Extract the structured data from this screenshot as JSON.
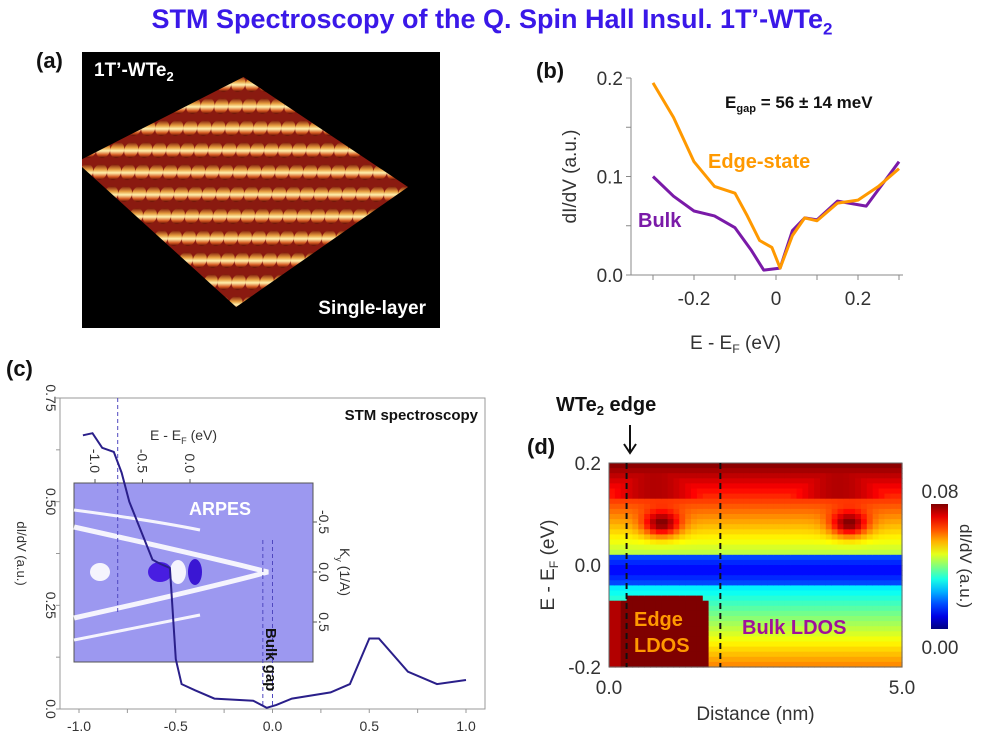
{
  "title": {
    "main": "STM Spectroscopy of the Q. Spin Hall Insul. 1T’-WTe",
    "sub": "2"
  },
  "colors": {
    "title": "#3a18e8",
    "edge": "#ff9900",
    "bulk": "#7a1aa8",
    "stm_curve": "#2a1f8a",
    "arpes_bg": "#9c98f0"
  },
  "panel_a": {
    "label": "(a)",
    "material": "1T’-WTe",
    "material_sub": "2",
    "caption": "Single-layer"
  },
  "chart_data": [
    {
      "id": "b",
      "type": "line",
      "label": "(b)",
      "xlabel": "E - E",
      "xlabel_sub": "F",
      "xlabel_unit": " (eV)",
      "ylabel": "dI/dV (a.u.)",
      "xlim": [
        -0.3,
        0.3
      ],
      "ylim": [
        0,
        0.2
      ],
      "xticks": [
        -0.2,
        0,
        0.2
      ],
      "xtick_labels": [
        "-0.2",
        "0",
        "0.2"
      ],
      "yticks": [
        0,
        0.1,
        0.2
      ],
      "ytick_labels": [
        "0.0",
        "0.1",
        "0.2"
      ],
      "annotation": {
        "prefix": "E",
        "sub": "gap",
        "text": " = 56 ± 14 meV"
      },
      "series": [
        {
          "name": "Edge-state",
          "x": [
            -0.3,
            -0.25,
            -0.2,
            -0.15,
            -0.1,
            -0.07,
            -0.04,
            -0.01,
            0.01,
            0.04,
            0.07,
            0.1,
            0.15,
            0.2,
            0.25,
            0.3
          ],
          "y": [
            0.195,
            0.16,
            0.115,
            0.09,
            0.083,
            0.06,
            0.035,
            0.028,
            0.007,
            0.04,
            0.058,
            0.055,
            0.073,
            0.076,
            0.09,
            0.108
          ]
        },
        {
          "name": "Bulk",
          "x": [
            -0.3,
            -0.25,
            -0.2,
            -0.15,
            -0.1,
            -0.06,
            -0.03,
            0.01,
            0.04,
            0.07,
            0.1,
            0.15,
            0.22,
            0.3
          ],
          "y": [
            0.1,
            0.08,
            0.065,
            0.06,
            0.048,
            0.025,
            0.005,
            0.007,
            0.045,
            0.058,
            0.056,
            0.075,
            0.07,
            0.115
          ]
        }
      ]
    },
    {
      "id": "c",
      "type": "line",
      "label": "(c)",
      "ylabel": "dI/dV (a.u.)",
      "xlim": [
        -1.1,
        1.05
      ],
      "ylim": [
        0,
        0.75
      ],
      "xticks": [
        -1.0,
        -0.5,
        0.0,
        0.5,
        1.0
      ],
      "xtick_labels": [
        "-1.0",
        "-0.5",
        "0.0",
        "0.5",
        "1.0"
      ],
      "yticks": [
        0,
        0.25,
        0.5,
        0.75
      ],
      "ytick_labels": [
        "0.0",
        "0.25",
        "0.50",
        "0.75"
      ],
      "annotation": "STM spectroscopy",
      "gap_label": "Bulk gap",
      "dashed_x": [
        -0.8,
        -0.05,
        0.0
      ],
      "series": [
        {
          "x": [
            -0.98,
            -0.93,
            -0.88,
            -0.82,
            -0.78,
            -0.74,
            -0.68,
            -0.62,
            -0.58,
            -0.53,
            -0.5,
            -0.47,
            -0.4,
            -0.3,
            -0.1,
            -0.03,
            0.02,
            0.1,
            0.3,
            0.4,
            0.5,
            0.55,
            0.7,
            0.85,
            1.0
          ],
          "y": [
            0.66,
            0.665,
            0.63,
            0.62,
            0.57,
            0.5,
            0.43,
            0.36,
            0.35,
            0.34,
            0.12,
            0.06,
            0.045,
            0.025,
            0.02,
            0.003,
            0.01,
            0.025,
            0.04,
            0.06,
            0.17,
            0.17,
            0.09,
            0.06,
            0.07
          ]
        }
      ],
      "inset": {
        "title": "ARPES",
        "xlabel": "E - E",
        "xlabel_sub": "F",
        "xlabel_unit": " (eV)",
        "xtick_labels": [
          "-1.0",
          "-0.5",
          "0.0"
        ],
        "ylabel": "K",
        "ylabel_sub": "y",
        "ylabel_unit": " (1/A)",
        "ytick_labels": [
          "-0.5",
          "0.0",
          "0.5"
        ]
      }
    },
    {
      "id": "d",
      "type": "heatmap",
      "label": "(d)",
      "xlabel": "Distance (nm)",
      "ylabel": "E - E",
      "ylabel_sub": "F",
      "ylabel_unit": " (eV)",
      "xlim": [
        0,
        5
      ],
      "ylim": [
        -0.2,
        0.2
      ],
      "xtick_labels": [
        "0.0",
        "5.0"
      ],
      "ytick_labels": [
        "0.2",
        "0.0",
        "-0.2"
      ],
      "colorbar": {
        "min": "0.00",
        "max": "0.08",
        "label": "dI/dV (a.u.)"
      },
      "edge_marker": {
        "text": "WTe",
        "sub": "2",
        "rest": " edge"
      },
      "dashed_x": [
        0.3,
        1.9
      ],
      "annotations": {
        "edge": [
          "Edge",
          "LDOS"
        ],
        "bulk": "Bulk LDOS"
      }
    }
  ]
}
